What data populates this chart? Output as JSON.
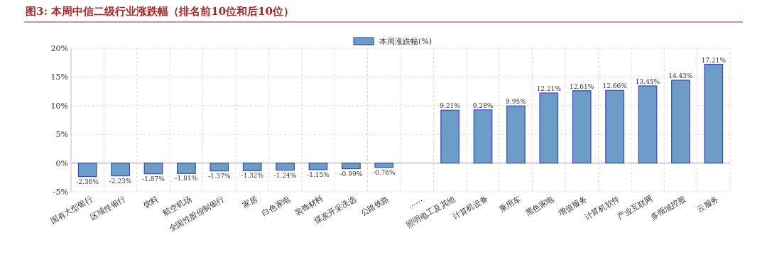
{
  "chart_data": {
    "type": "bar",
    "title": "图3:   本周中信二级行业涨跌幅（排名前10位和后10位）",
    "categories": [
      "国有大型银行",
      "区域性银行",
      "饮料",
      "航空机场",
      "全国性股份制银行",
      "家居",
      "白色家电",
      "装饰材料",
      "煤炭开采洗选",
      "公路铁路",
      "……",
      "照明电工及其他",
      "计算机设备",
      "乘用车",
      "黑色家电",
      "增值服务",
      "计算机软件",
      "产业互联网",
      "多领域控股",
      "云服务"
    ],
    "series": [
      {
        "name": "本周涨跌幅(%)",
        "color": "#6b9dc8",
        "values": [
          -2.36,
          -2.23,
          -1.87,
          -1.81,
          -1.37,
          -1.32,
          -1.24,
          -1.15,
          -0.99,
          -0.76,
          null,
          9.21,
          9.28,
          9.95,
          12.21,
          12.61,
          12.66,
          13.45,
          14.43,
          17.21
        ],
        "value_labels": [
          "-2.36%",
          "-2.23%",
          "-1.87%",
          "-1.81%",
          "-1.37%",
          "-1.32%",
          "-1.24%",
          "-1.15%",
          "-0.99%",
          "-0.76%",
          null,
          "9.21%",
          "9.28%",
          "9.95%",
          "12.21%",
          "12.61%",
          "12.66%",
          "13.45%",
          "14.43%",
          "17.21%"
        ]
      }
    ],
    "ylim": [
      -5,
      20
    ],
    "yticks": [
      {
        "value": -5,
        "label": "-5%"
      },
      {
        "value": 0,
        "label": "0%"
      },
      {
        "value": 5,
        "label": "5%"
      },
      {
        "value": 10,
        "label": "10%"
      },
      {
        "value": 15,
        "label": "15%"
      },
      {
        "value": 20,
        "label": "20%"
      }
    ],
    "grid": true,
    "legend": "top"
  }
}
